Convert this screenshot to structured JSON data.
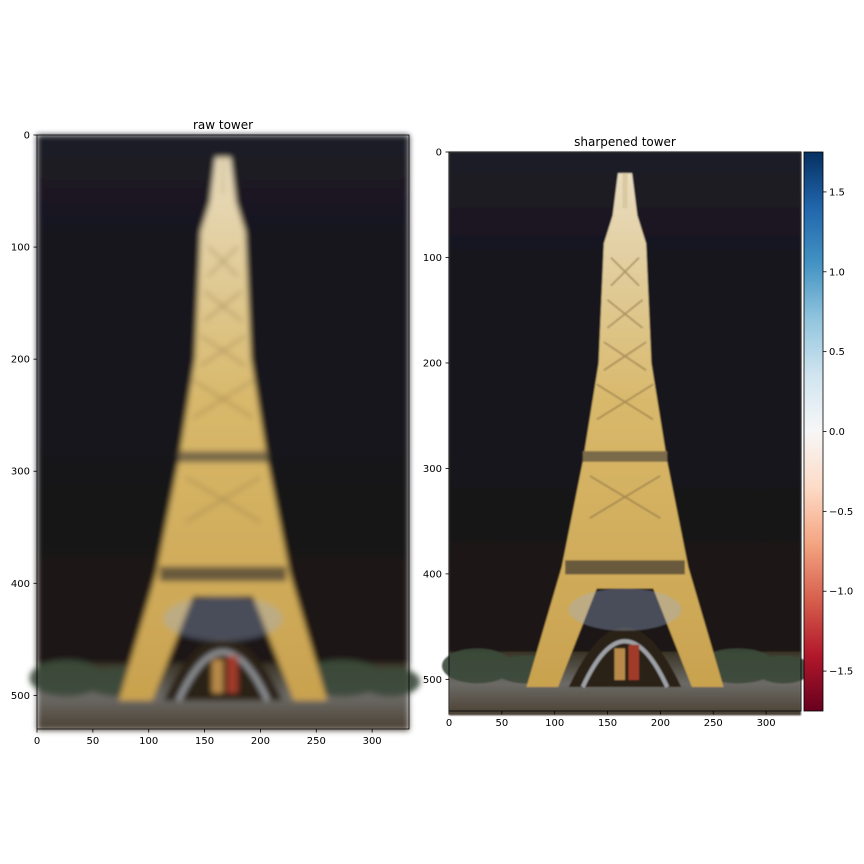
{
  "chart_data": [
    {
      "type": "image",
      "title": "raw tower",
      "xlim": [
        0,
        333
      ],
      "ylim": [
        530,
        0
      ],
      "xticks": [
        0,
        50,
        100,
        150,
        200,
        250,
        300
      ],
      "yticks": [
        0,
        100,
        200,
        300,
        400,
        500
      ],
      "content": "photograph of the Eiffel Tower at night (blurred)"
    },
    {
      "type": "image",
      "title": "sharpened tower",
      "xlim": [
        0,
        333
      ],
      "ylim": [
        530,
        0
      ],
      "xticks": [
        0,
        50,
        100,
        150,
        200,
        250,
        300
      ],
      "yticks": [
        0,
        100,
        200,
        300,
        400,
        500
      ],
      "content": "photograph of the Eiffel Tower at night (sharpened)",
      "colorbar": {
        "cmap": "RdBu",
        "range": [
          -1.75,
          1.75
        ],
        "ticks": [
          1.5,
          1.0,
          0.5,
          0.0,
          -0.5,
          -1.0,
          -1.5
        ],
        "tick_labels": [
          "1.5",
          "1.0",
          "0.5",
          "0.0",
          "−0.5",
          "−1.0",
          "−1.5"
        ]
      }
    }
  ]
}
